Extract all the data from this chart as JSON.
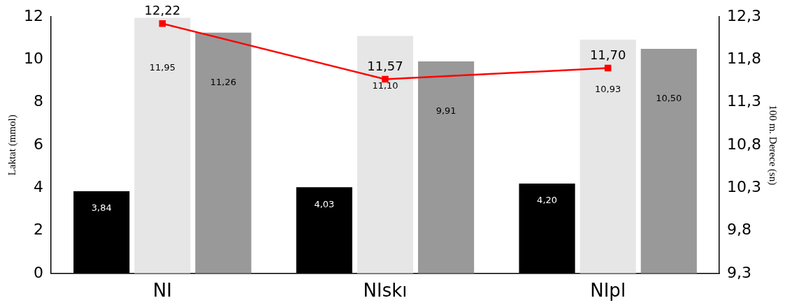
{
  "chart_data": {
    "type": "bar",
    "categories": [
      "NI",
      "NIskı",
      "NIpl"
    ],
    "ylabel": "Laktat (mmol)",
    "y2label": "100 m. Derece (sn)",
    "ylim": [
      0,
      12
    ],
    "yticks": [
      0,
      2,
      4,
      6,
      8,
      10,
      12
    ],
    "y2lim": [
      9.3,
      12.3
    ],
    "y2ticks": [
      {
        "value": 9.3,
        "label": "9,3"
      },
      {
        "value": 9.8,
        "label": "9,8"
      },
      {
        "value": 10.3,
        "label": "10,3"
      },
      {
        "value": 10.8,
        "label": "10,8"
      },
      {
        "value": 11.3,
        "label": "11,3"
      },
      {
        "value": 11.8,
        "label": "11,8"
      },
      {
        "value": 12.3,
        "label": "12,3"
      }
    ],
    "marker": "square",
    "series": [
      {
        "color": "#000000",
        "values": [
          3.84,
          4.03,
          4.2
        ],
        "value_labels": [
          "3,84",
          "4,03",
          "4,20"
        ]
      },
      {
        "color": "#e6e6e6",
        "values": [
          11.95,
          11.1,
          10.93
        ],
        "value_labels": [
          "11,95",
          "11,10",
          "10,93"
        ]
      },
      {
        "color": "#999999",
        "values": [
          11.26,
          9.91,
          10.5
        ],
        "value_labels": [
          "11,26",
          "9,91",
          "10,50"
        ]
      },
      {
        "type": "line",
        "axis": "y2",
        "color": "#ff0000",
        "values": [
          12.22,
          11.57,
          11.7
        ],
        "value_labels": [
          "12,22",
          "11,57",
          "11,70"
        ]
      }
    ]
  }
}
